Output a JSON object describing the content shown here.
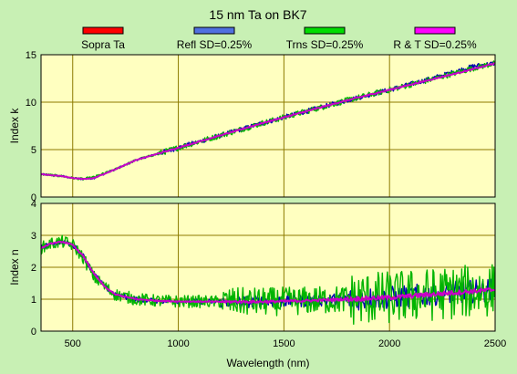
{
  "title": "15 nm Ta on BK7",
  "legend": [
    {
      "name": "Sopra Ta",
      "color": "#ff0000"
    },
    {
      "name": "Refl SD=0.25%",
      "color": "#5070e0"
    },
    {
      "name": "Trns SD=0.25%",
      "color": "#00dd00"
    },
    {
      "name": "R & T SD=0.25%",
      "color": "#ff00ff"
    }
  ],
  "chart_data": [
    {
      "type": "line",
      "panel": "top",
      "ylabel": "Index k",
      "xlabel": "",
      "xlim": [
        350,
        2500
      ],
      "ylim": [
        0,
        15
      ],
      "xticks": [
        500,
        1000,
        1500,
        2000,
        2500
      ],
      "yticks": [
        0,
        5,
        10,
        15
      ],
      "grid": true,
      "x": [
        350,
        450,
        500,
        550,
        600,
        700,
        800,
        1000,
        1200,
        1400,
        1600,
        1800,
        2000,
        2200,
        2400,
        2500
      ],
      "series": [
        {
          "name": "Sopra Ta",
          "color": "#ff0000",
          "noise": 0,
          "y": [
            2.4,
            2.2,
            2.0,
            1.9,
            2.0,
            2.9,
            3.9,
            5.2,
            6.5,
            7.8,
            9.0,
            10.2,
            11.3,
            12.4,
            13.5,
            14.1
          ]
        },
        {
          "name": "Refl SD=0.25%",
          "color": "#0000b4",
          "noise": 0.25,
          "y": [
            2.4,
            2.2,
            2.0,
            1.9,
            2.0,
            2.9,
            3.9,
            5.2,
            6.5,
            7.8,
            9.0,
            10.2,
            11.3,
            12.5,
            13.8,
            14.1
          ]
        },
        {
          "name": "Trns SD=0.25%",
          "color": "#00b400",
          "noise": 0.3,
          "y": [
            2.4,
            2.2,
            2.0,
            1.9,
            2.1,
            2.9,
            3.9,
            5.2,
            6.5,
            7.8,
            9.0,
            10.2,
            11.3,
            12.4,
            13.6,
            14.1
          ]
        },
        {
          "name": "R & T SD=0.25%",
          "color": "#c800c8",
          "noise": 0.05,
          "y": [
            2.4,
            2.2,
            2.0,
            1.9,
            2.0,
            2.9,
            3.9,
            5.2,
            6.5,
            7.8,
            9.0,
            10.2,
            11.3,
            12.4,
            13.5,
            14.1
          ]
        }
      ]
    },
    {
      "type": "line",
      "panel": "bottom",
      "ylabel": "Index n",
      "xlabel": "Wavelength (nm)",
      "xlim": [
        350,
        2500
      ],
      "ylim": [
        0,
        4
      ],
      "xticks": [
        500,
        1000,
        1500,
        2000,
        2500
      ],
      "yticks": [
        0,
        1,
        2,
        3,
        4
      ],
      "grid": true,
      "x": [
        350,
        400,
        450,
        500,
        550,
        600,
        650,
        700,
        800,
        900,
        1000,
        1200,
        1400,
        1600,
        1800,
        2000,
        2200,
        2400,
        2500
      ],
      "series": [
        {
          "name": "Sopra Ta",
          "color": "#ff0000",
          "noise": 0,
          "y": [
            2.6,
            2.75,
            2.8,
            2.7,
            2.35,
            1.8,
            1.4,
            1.15,
            1.0,
            0.95,
            0.93,
            0.92,
            0.92,
            0.95,
            1.0,
            1.05,
            1.15,
            1.25,
            1.3
          ]
        },
        {
          "name": "Refl SD=0.25%",
          "color": "#0000b4",
          "noise": 0.15,
          "y": [
            2.6,
            2.75,
            2.8,
            2.7,
            2.35,
            1.8,
            1.4,
            1.15,
            1.0,
            0.95,
            0.93,
            0.92,
            0.92,
            0.95,
            1.0,
            1.05,
            1.15,
            1.25,
            1.3
          ]
        },
        {
          "name": "Trns SD=0.25%",
          "color": "#00b400",
          "noise": 0.35,
          "y": [
            2.6,
            2.75,
            2.8,
            2.7,
            2.3,
            1.7,
            1.4,
            1.15,
            1.0,
            0.95,
            0.93,
            0.92,
            0.92,
            0.95,
            1.0,
            1.05,
            1.15,
            1.25,
            1.3
          ]
        },
        {
          "name": "R & T SD=0.25%",
          "color": "#c800c8",
          "noise": 0.03,
          "y": [
            2.6,
            2.75,
            2.8,
            2.7,
            2.35,
            1.8,
            1.4,
            1.15,
            1.0,
            0.95,
            0.93,
            0.92,
            0.92,
            0.95,
            1.0,
            1.05,
            1.15,
            1.25,
            1.3
          ]
        }
      ]
    }
  ]
}
